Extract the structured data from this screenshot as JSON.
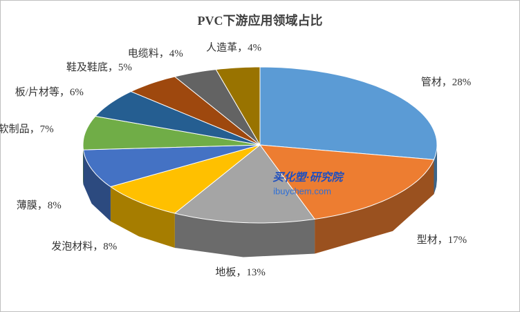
{
  "chart_data": {
    "type": "pie3d",
    "title": "PVC下游应用领域占比",
    "values": [
      28,
      17,
      13,
      8,
      8,
      7,
      6,
      5,
      4,
      4
    ],
    "value_labels": [
      "管材，28%",
      "型材，17%",
      "地板，13%",
      "发泡材料，8%",
      "薄膜，8%",
      "软制品，7%",
      "板/片材等，6%",
      "鞋及鞋底，5%",
      "电缆料，4%",
      "人造革，4%"
    ],
    "colors": [
      "#5b9bd5",
      "#ed7d31",
      "#a5a5a5",
      "#ffc000",
      "#4472c4",
      "#70ad47",
      "#255e91",
      "#9e480e",
      "#636363",
      "#997300"
    ],
    "watermark": [
      "买化塑·研究院",
      "ibuychem.com"
    ]
  }
}
